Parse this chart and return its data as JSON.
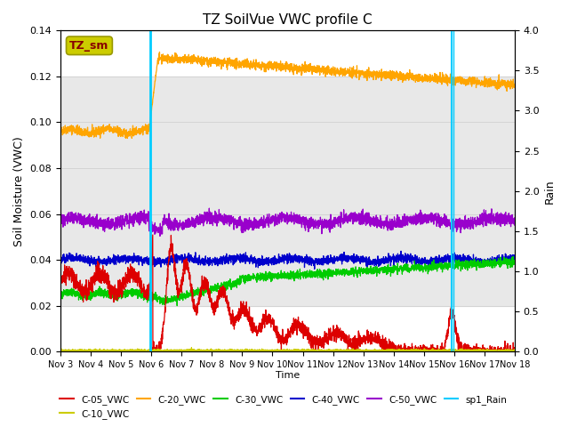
{
  "title": "TZ SoilVue VWC profile C",
  "xlabel": "Time",
  "ylabel_left": "Soil Moisture (VWC)",
  "ylabel_right": "Rain",
  "ylim_left": [
    0,
    0.14
  ],
  "ylim_right": [
    0,
    4.0
  ],
  "yticks_left": [
    0.0,
    0.02,
    0.04,
    0.06,
    0.08,
    0.1,
    0.12,
    0.14
  ],
  "yticks_right": [
    0.0,
    0.5,
    1.0,
    1.5,
    2.0,
    2.5,
    3.0,
    3.5,
    4.0
  ],
  "xtick_labels": [
    "Nov 3",
    "Nov 4",
    "Nov 5",
    "Nov 6",
    "Nov 7",
    "Nov 8",
    "Nov 9",
    "Nov 10",
    "Nov 11",
    "Nov 12",
    "Nov 13",
    "Nov 14",
    "Nov 15",
    "Nov 16",
    "Nov 17",
    "Nov 18"
  ],
  "legend_entries": [
    "C-05_VWC",
    "C-10_VWC",
    "C-20_VWC",
    "C-30_VWC",
    "C-40_VWC",
    "C-50_VWC",
    "sp1_Rain"
  ],
  "line_colors": {
    "C-05_VWC": "#dd0000",
    "C-10_VWC": "#cccc00",
    "C-20_VWC": "#ffa500",
    "C-30_VWC": "#00cc00",
    "C-40_VWC": "#0000cc",
    "C-50_VWC": "#9900cc",
    "sp1_Rain": "#00ccff"
  },
  "background_color": "#ffffff",
  "band_color": "#e8e8e8",
  "band_ylim": [
    0.02,
    0.12
  ],
  "rain_day1": 2.97,
  "rain_day2": 12.93,
  "tz_sm_box_color": "#cccc00",
  "tz_sm_box_text": "TZ_sm"
}
